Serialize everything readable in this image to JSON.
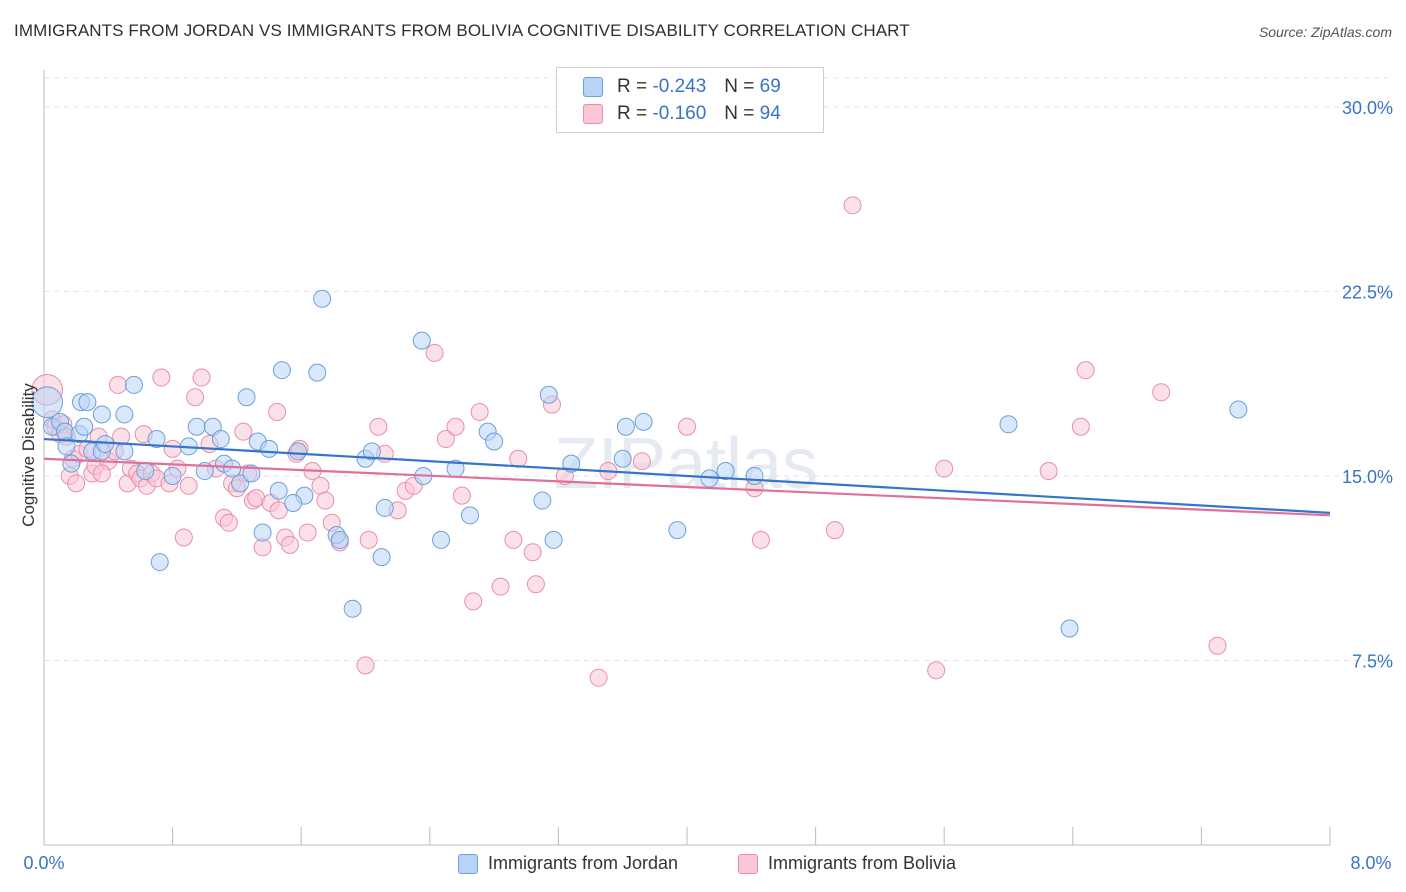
{
  "title": "IMMIGRANTS FROM JORDAN VS IMMIGRANTS FROM BOLIVIA COGNITIVE DISABILITY CORRELATION CHART",
  "source": "Source: ZipAtlas.com",
  "watermark": "ZIPatlas",
  "legend": {
    "rows": [
      {
        "r_label": "R =",
        "r_value": "-0.243",
        "n_label": "N =",
        "n_value": "69"
      },
      {
        "r_label": "R =",
        "r_value": "-0.160",
        "n_label": "N =",
        "n_value": "94"
      }
    ]
  },
  "colors": {
    "jordan_fill": "#b8d3f5",
    "jordan_stroke": "#6f9fda",
    "jordan_line": "#3375cc",
    "bolivia_fill": "#fac6d6",
    "bolivia_stroke": "#e98eab",
    "bolivia_line": "#e0709a",
    "tick_label": "#3a74c4",
    "grid": "#e3e3e3"
  },
  "chart_data": {
    "type": "scatter",
    "title": "IMMIGRANTS FROM JORDAN VS IMMIGRANTS FROM BOLIVIA COGNITIVE DISABILITY CORRELATION CHART",
    "xlabel": "",
    "ylabel": "Cognitive Disability",
    "xlim": [
      0,
      8
    ],
    "ylim": [
      0,
      31.5
    ],
    "x_tick_labels": [
      "0.0%",
      "8.0%"
    ],
    "y_ticks": [
      7.5,
      15.0,
      22.5,
      30.0
    ],
    "y_tick_labels": [
      "7.5%",
      "15.0%",
      "22.5%",
      "30.0%"
    ],
    "grid": true,
    "legend_position": "bottom",
    "series": [
      {
        "name": "Immigrants from Jordan",
        "trend": [
          [
            0,
            16.5
          ],
          [
            8,
            13.5
          ]
        ],
        "points": [
          [
            0.02,
            18.0,
            1.8
          ],
          [
            0.05,
            17.0,
            1
          ],
          [
            0.1,
            17.2,
            1
          ],
          [
            0.13,
            16.8,
            1
          ],
          [
            0.14,
            16.2,
            1
          ],
          [
            0.17,
            15.5,
            1
          ],
          [
            0.22,
            16.7,
            1
          ],
          [
            0.23,
            18.0,
            1
          ],
          [
            0.25,
            17.0,
            1
          ],
          [
            0.27,
            18.0,
            1
          ],
          [
            0.3,
            16.0,
            1
          ],
          [
            0.36,
            17.5,
            1
          ],
          [
            0.36,
            16.0,
            1
          ],
          [
            0.38,
            16.3,
            1
          ],
          [
            0.5,
            17.5,
            1
          ],
          [
            0.5,
            16.0,
            1
          ],
          [
            0.56,
            18.7,
            1
          ],
          [
            0.7,
            16.5,
            1
          ],
          [
            0.72,
            11.5,
            1
          ],
          [
            0.8,
            15.0,
            1
          ],
          [
            0.9,
            16.2,
            1
          ],
          [
            0.95,
            17.0,
            1
          ],
          [
            1.0,
            15.2,
            1
          ],
          [
            1.05,
            17.0,
            1
          ],
          [
            1.1,
            16.5,
            1
          ],
          [
            1.12,
            15.5,
            1
          ],
          [
            1.17,
            15.3,
            1
          ],
          [
            1.22,
            14.7,
            1
          ],
          [
            1.26,
            18.2,
            1
          ],
          [
            1.29,
            15.1,
            1
          ],
          [
            1.33,
            16.4,
            1
          ],
          [
            1.36,
            12.7,
            1
          ],
          [
            1.4,
            16.1,
            1
          ],
          [
            1.46,
            14.4,
            1
          ],
          [
            1.48,
            19.3,
            1
          ],
          [
            1.58,
            16.0,
            1
          ],
          [
            1.62,
            14.2,
            1
          ],
          [
            1.7,
            19.2,
            1
          ],
          [
            1.73,
            22.2,
            1
          ],
          [
            1.82,
            12.6,
            1
          ],
          [
            1.84,
            12.4,
            1
          ],
          [
            1.92,
            9.6,
            1
          ],
          [
            2.0,
            15.7,
            1
          ],
          [
            2.04,
            16.0,
            1
          ],
          [
            2.1,
            11.7,
            1
          ],
          [
            2.12,
            13.7,
            1
          ],
          [
            2.35,
            20.5,
            1
          ],
          [
            2.47,
            12.4,
            1
          ],
          [
            2.56,
            15.3,
            1
          ],
          [
            2.65,
            13.4,
            1
          ],
          [
            2.76,
            16.8,
            1
          ],
          [
            2.8,
            16.4,
            1
          ],
          [
            3.1,
            14.0,
            1
          ],
          [
            3.14,
            18.3,
            1
          ],
          [
            3.17,
            12.4,
            1
          ],
          [
            3.28,
            15.5,
            1
          ],
          [
            3.6,
            15.7,
            1
          ],
          [
            3.62,
            17.0,
            1
          ],
          [
            3.73,
            17.2,
            1
          ],
          [
            3.94,
            12.8,
            1
          ],
          [
            4.14,
            14.9,
            1
          ],
          [
            4.24,
            15.2,
            1
          ],
          [
            4.42,
            15.0,
            1
          ],
          [
            6.0,
            17.1,
            1
          ],
          [
            6.38,
            8.8,
            1
          ],
          [
            7.43,
            17.7,
            1
          ],
          [
            2.36,
            15.0,
            1
          ],
          [
            1.55,
            13.9,
            1
          ],
          [
            0.63,
            15.2,
            1
          ]
        ]
      },
      {
        "name": "Immigrants from Bolivia",
        "trend": [
          [
            0,
            15.7
          ],
          [
            8,
            13.4
          ]
        ],
        "points": [
          [
            0.02,
            18.5,
            1.8
          ],
          [
            0.05,
            17.3,
            1
          ],
          [
            0.07,
            17.0,
            1
          ],
          [
            0.1,
            16.7,
            1
          ],
          [
            0.12,
            17.1,
            1
          ],
          [
            0.14,
            16.6,
            1
          ],
          [
            0.16,
            15.0,
            1
          ],
          [
            0.18,
            15.7,
            1
          ],
          [
            0.2,
            14.7,
            1
          ],
          [
            0.22,
            15.9,
            1
          ],
          [
            0.27,
            16.1,
            1
          ],
          [
            0.3,
            15.1,
            1
          ],
          [
            0.32,
            15.4,
            1
          ],
          [
            0.34,
            16.6,
            1
          ],
          [
            0.4,
            15.6,
            1
          ],
          [
            0.44,
            16.0,
            1
          ],
          [
            0.46,
            18.7,
            1
          ],
          [
            0.48,
            16.6,
            1
          ],
          [
            0.52,
            14.7,
            1
          ],
          [
            0.54,
            15.3,
            1
          ],
          [
            0.58,
            15.1,
            1
          ],
          [
            0.6,
            14.9,
            1
          ],
          [
            0.62,
            16.7,
            1
          ],
          [
            0.64,
            14.6,
            1
          ],
          [
            0.67,
            15.1,
            1
          ],
          [
            0.7,
            14.9,
            1
          ],
          [
            0.73,
            19.0,
            1
          ],
          [
            0.78,
            14.7,
            1
          ],
          [
            0.8,
            16.1,
            1
          ],
          [
            0.83,
            15.3,
            1
          ],
          [
            0.87,
            12.5,
            1
          ],
          [
            0.9,
            14.6,
            1
          ],
          [
            0.94,
            18.2,
            1
          ],
          [
            0.98,
            19.0,
            1
          ],
          [
            1.03,
            16.3,
            1
          ],
          [
            1.07,
            15.3,
            1
          ],
          [
            1.12,
            13.3,
            1
          ],
          [
            1.15,
            13.1,
            1
          ],
          [
            1.17,
            14.7,
            1
          ],
          [
            1.2,
            14.5,
            1
          ],
          [
            1.24,
            16.8,
            1
          ],
          [
            1.27,
            15.1,
            1
          ],
          [
            1.3,
            14.0,
            1
          ],
          [
            1.32,
            14.1,
            1
          ],
          [
            1.36,
            12.1,
            1
          ],
          [
            1.41,
            13.9,
            1
          ],
          [
            1.45,
            17.6,
            1
          ],
          [
            1.5,
            12.5,
            1
          ],
          [
            1.53,
            12.2,
            1
          ],
          [
            1.57,
            15.9,
            1
          ],
          [
            1.59,
            16.1,
            1
          ],
          [
            1.64,
            12.7,
            1
          ],
          [
            1.67,
            15.2,
            1
          ],
          [
            1.72,
            14.6,
            1
          ],
          [
            1.75,
            14.0,
            1
          ],
          [
            1.79,
            13.1,
            1
          ],
          [
            1.84,
            12.3,
            1
          ],
          [
            2.0,
            7.3,
            1
          ],
          [
            2.02,
            12.4,
            1
          ],
          [
            2.08,
            17.0,
            1
          ],
          [
            2.12,
            15.9,
            1
          ],
          [
            2.2,
            13.6,
            1
          ],
          [
            2.25,
            14.4,
            1
          ],
          [
            2.3,
            14.6,
            1
          ],
          [
            2.43,
            20.0,
            1
          ],
          [
            2.5,
            16.5,
            1
          ],
          [
            2.56,
            17.0,
            1
          ],
          [
            2.6,
            14.2,
            1
          ],
          [
            2.67,
            9.9,
            1
          ],
          [
            2.71,
            17.6,
            1
          ],
          [
            2.84,
            10.5,
            1
          ],
          [
            2.92,
            12.4,
            1
          ],
          [
            2.95,
            15.7,
            1
          ],
          [
            3.04,
            11.9,
            1
          ],
          [
            3.06,
            10.6,
            1
          ],
          [
            3.16,
            17.9,
            1
          ],
          [
            3.24,
            15.0,
            1
          ],
          [
            3.45,
            6.8,
            1
          ],
          [
            3.51,
            15.2,
            1
          ],
          [
            3.72,
            15.6,
            1
          ],
          [
            4.0,
            17.0,
            1
          ],
          [
            4.42,
            14.5,
            1
          ],
          [
            4.46,
            12.4,
            1
          ],
          [
            4.92,
            12.8,
            1
          ],
          [
            5.03,
            26.0,
            1
          ],
          [
            5.55,
            7.1,
            1
          ],
          [
            5.6,
            15.3,
            1
          ],
          [
            6.25,
            15.2,
            1
          ],
          [
            6.45,
            17.0,
            1
          ],
          [
            6.48,
            19.3,
            1
          ],
          [
            6.95,
            18.4,
            1
          ],
          [
            7.3,
            8.1,
            1
          ],
          [
            0.36,
            15.1,
            1
          ],
          [
            1.46,
            13.6,
            1
          ]
        ]
      }
    ]
  },
  "bottom_legend": {
    "jordan": "Immigrants from Jordan",
    "bolivia": "Immigrants from Bolivia"
  }
}
